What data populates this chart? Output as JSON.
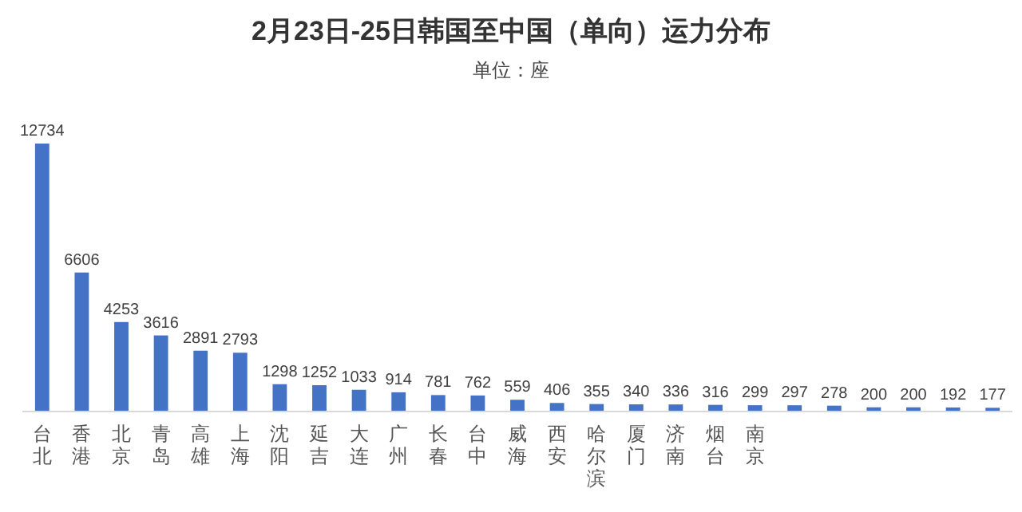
{
  "chart_data": {
    "type": "bar",
    "title": "2月23日-25日韩国至中国（单向）运力分布",
    "subtitle": "单位：座",
    "categories": [
      "台北",
      "香港",
      "北京",
      "青岛",
      "高雄",
      "上海",
      "沈阳",
      "延吉",
      "大连",
      "广州",
      "长春",
      "台中",
      "威海",
      "西安",
      "哈尔滨",
      "厦门",
      "济南",
      "烟台",
      "南京",
      null,
      null,
      null,
      null,
      null,
      null
    ],
    "values": [
      12734,
      6606,
      4253,
      3616,
      2891,
      2793,
      1298,
      1252,
      1033,
      914,
      781,
      762,
      559,
      406,
      355,
      340,
      336,
      316,
      299,
      297,
      278,
      200,
      200,
      192,
      177
    ],
    "color": "#4472c4",
    "data_labels": true
  }
}
